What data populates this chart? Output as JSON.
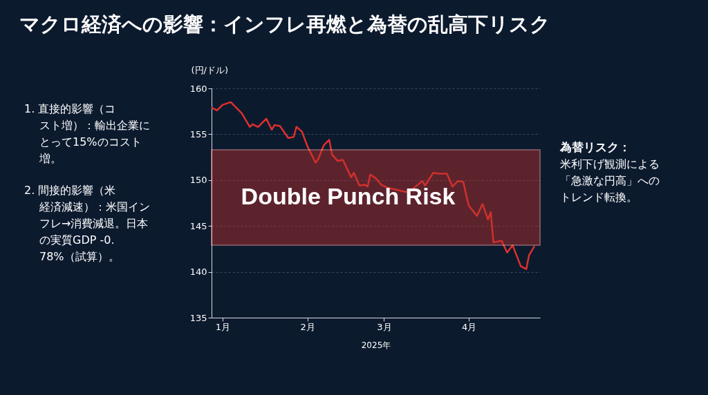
{
  "chart_data": {
    "type": "line",
    "title": "マクロ経済への影響：インフレ再燃と為替の乱高下リスク",
    "ylabel": "(円/ドル)",
    "xlabel": "2025年",
    "x": [
      "2024-12-28",
      "2024-12-30",
      "2025-01-01",
      "2025-01-04",
      "2025-01-08",
      "2025-01-11",
      "2025-01-12",
      "2025-01-14",
      "2025-01-17",
      "2025-01-19",
      "2025-01-20",
      "2025-01-22",
      "2025-01-25",
      "2025-01-27",
      "2025-01-28",
      "2025-01-30",
      "2025-02-01",
      "2025-02-04",
      "2025-02-05",
      "2025-02-07",
      "2025-02-09",
      "2025-02-10",
      "2025-02-12",
      "2025-02-14",
      "2025-02-17",
      "2025-02-18",
      "2025-02-20",
      "2025-02-22",
      "2025-02-23",
      "2025-02-24",
      "2025-02-26",
      "2025-02-28",
      "2025-03-02",
      "2025-03-09",
      "2025-03-11",
      "2025-03-15",
      "2025-03-16",
      "2025-03-19",
      "2025-03-21",
      "2025-03-24",
      "2025-03-26",
      "2025-03-28",
      "2025-03-30",
      "2025-03-31",
      "2025-04-01",
      "2025-04-04",
      "2025-04-06",
      "2025-04-08",
      "2025-04-09",
      "2025-04-10",
      "2025-04-13",
      "2025-04-15",
      "2025-04-17",
      "2025-04-20",
      "2025-04-22",
      "2025-04-23",
      "2025-04-25"
    ],
    "series": [
      {
        "color": "#e0302c",
        "values": [
          157.9,
          157.6,
          158.2,
          158.5,
          157.3,
          155.8,
          156.1,
          155.8,
          156.7,
          155.5,
          156.0,
          155.9,
          154.6,
          154.7,
          155.8,
          155.3,
          153.7,
          151.9,
          152.3,
          153.8,
          154.4,
          152.8,
          152.1,
          152.2,
          150.3,
          150.8,
          149.4,
          149.5,
          149.3,
          150.6,
          150.2,
          149.5,
          149.2,
          148.7,
          148.9,
          149.9,
          149.4,
          150.8,
          150.7,
          150.7,
          149.3,
          149.9,
          149.8,
          148.4,
          147.2,
          146.1,
          147.4,
          145.7,
          146.5,
          143.2,
          143.4,
          142.1,
          142.9,
          140.6,
          140.3,
          141.8,
          142.8
        ]
      }
    ],
    "xlim": [
      "2024-12-28",
      "2025-04-27"
    ],
    "xticks": [
      {
        "value": "2025-01-01",
        "label": "1月"
      },
      {
        "value": "2025-02-01",
        "label": "2月"
      },
      {
        "value": "2025-03-01",
        "label": "3月"
      },
      {
        "value": "2025-04-01",
        "label": "4月"
      }
    ],
    "ylim": [
      135,
      160
    ],
    "yticks": [
      135,
      140,
      145,
      150,
      155,
      160
    ],
    "grid": "y",
    "marker": "none",
    "line_style": "solid",
    "legend": false,
    "bands": [
      {
        "axis": "y",
        "from": 142.9,
        "to": 153.3,
        "label": "Double Punch Risk",
        "color": "#c0302c"
      }
    ],
    "annotations": [
      "1. 直接的影響（コスト増）：輸出企業にとって15%のコスト増。",
      "2. 間接的影響（米経済減速）：米国インフレ→消費減退。日本の実質GDP -0.78%（試算）。",
      "為替リスク：",
      "米利下げ観測による「急激な円高」へのトレンド転換。"
    ]
  }
}
